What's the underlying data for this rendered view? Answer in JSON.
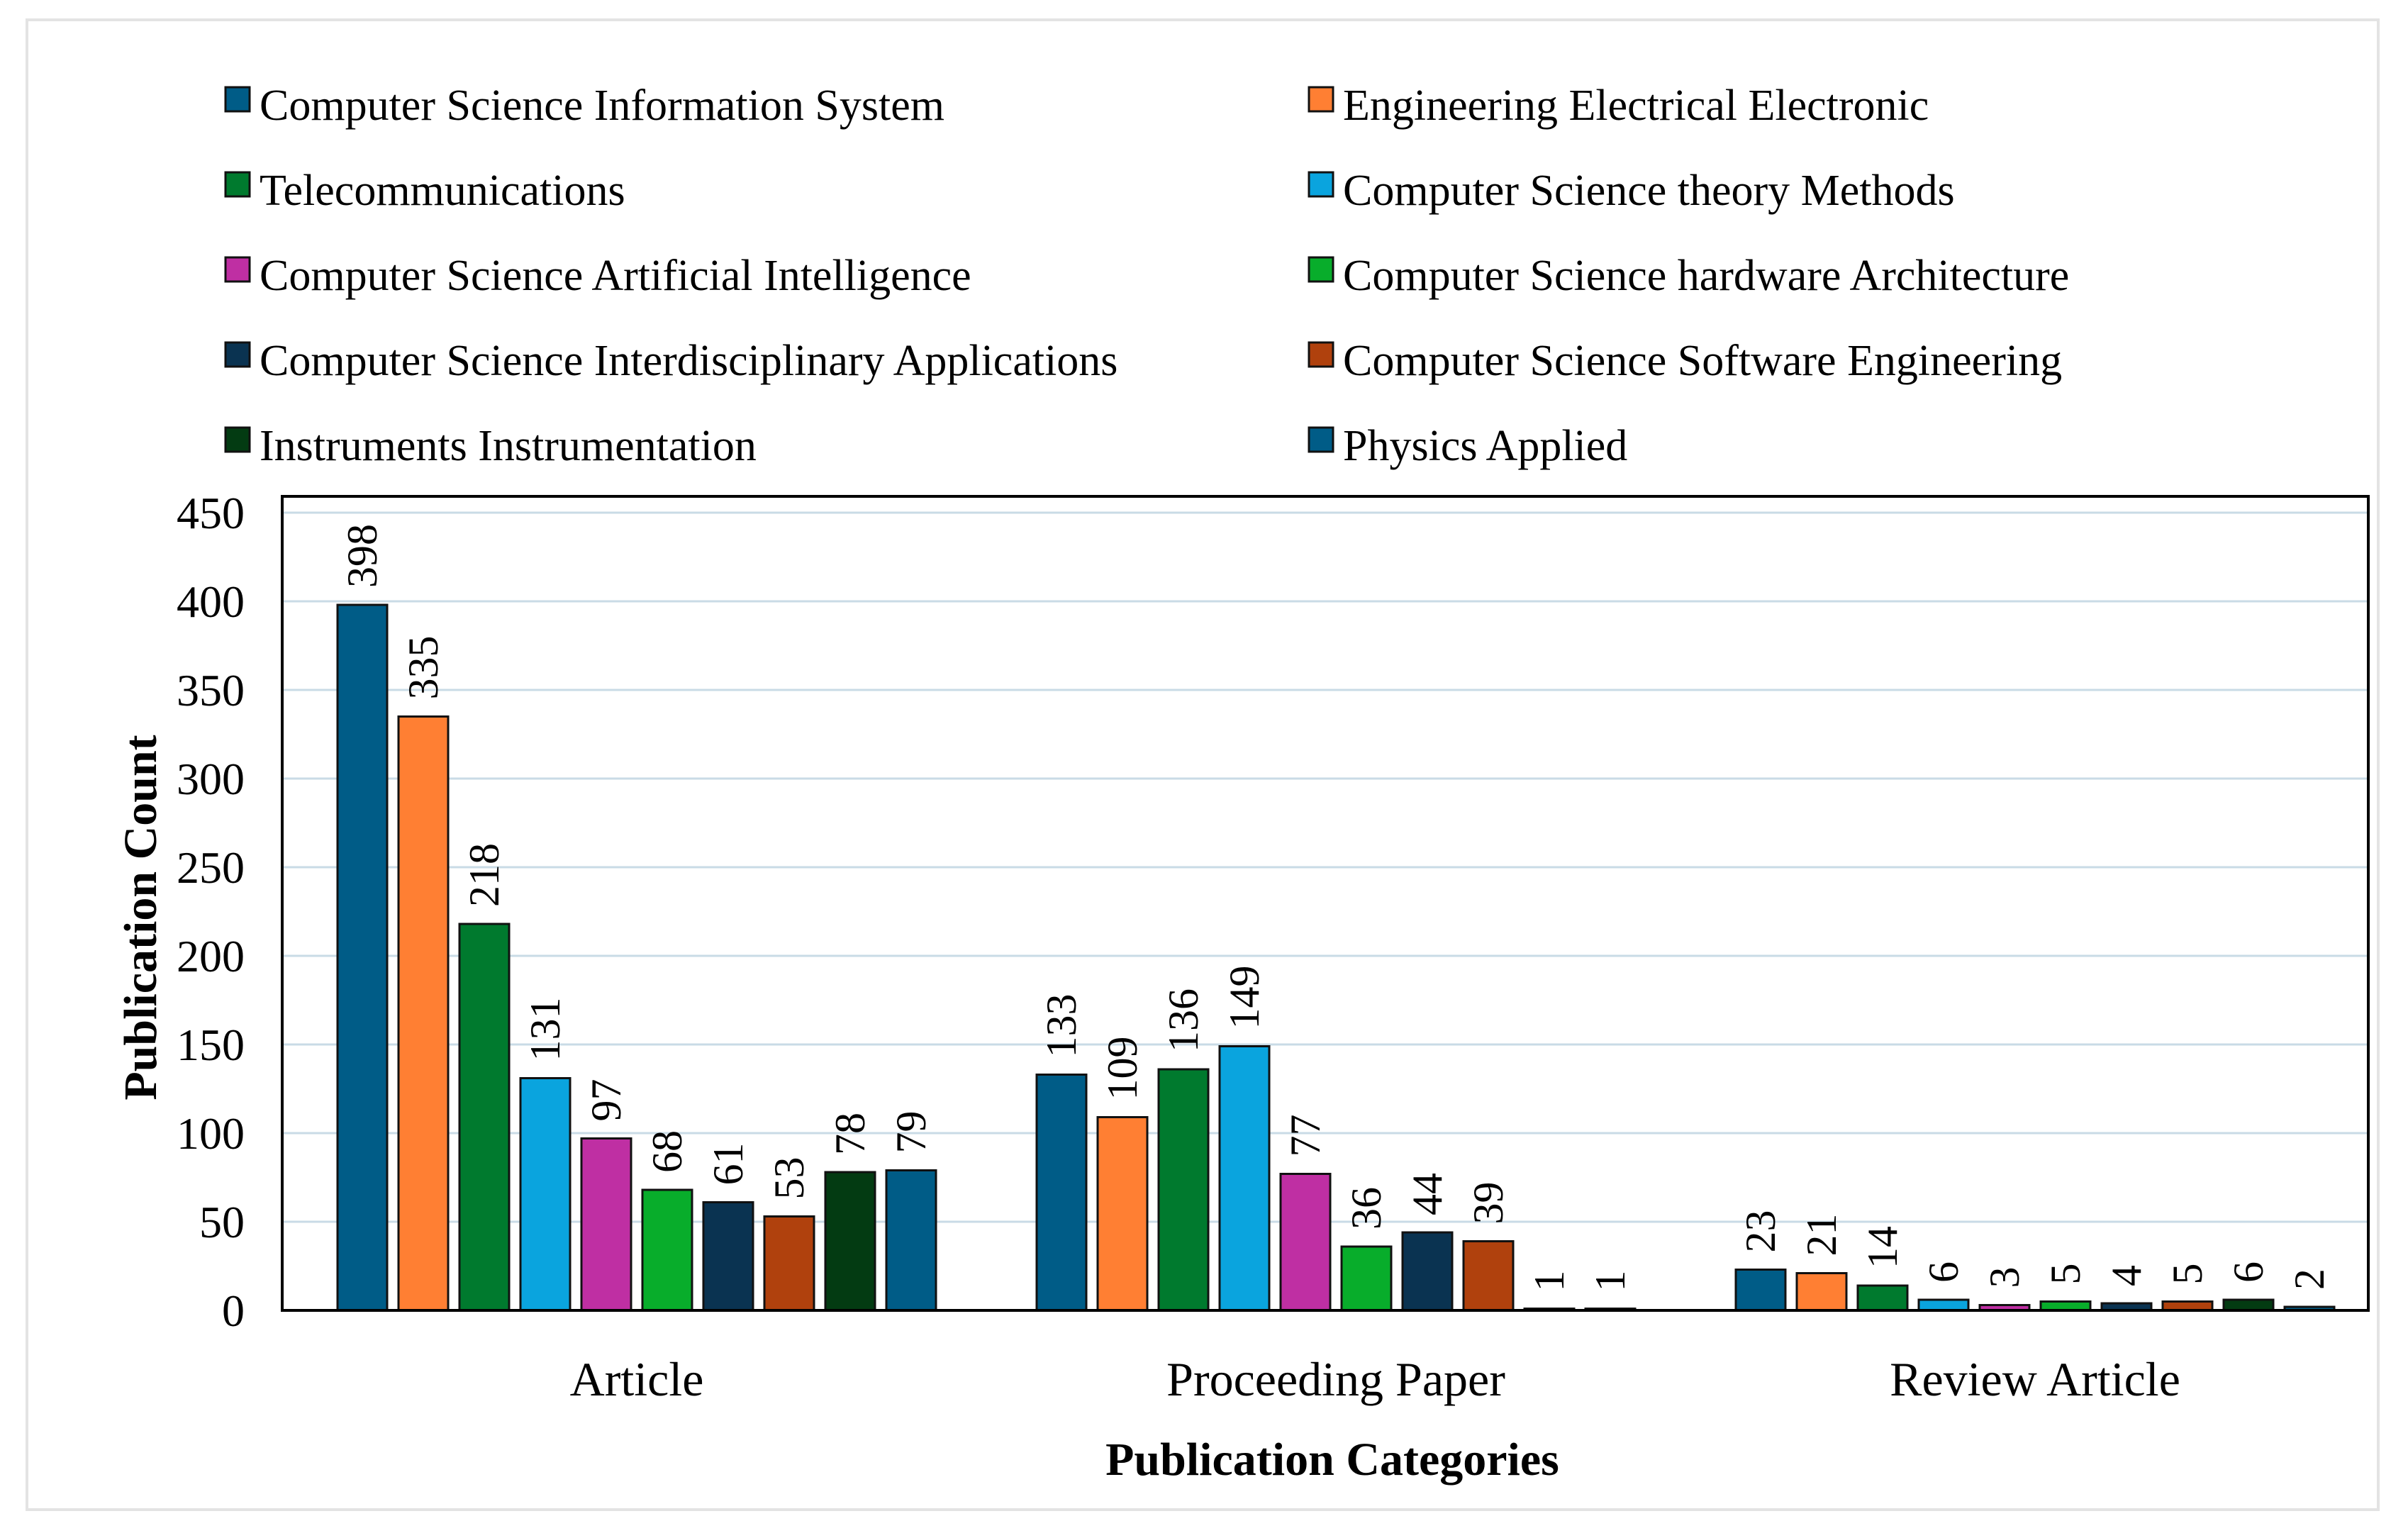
{
  "chart_data": {
    "type": "bar",
    "title": "",
    "xlabel": "Publication Categories",
    "ylabel": "Publication Count",
    "ylim": [
      0,
      450
    ],
    "yticks": [
      0,
      50,
      100,
      150,
      200,
      250,
      300,
      350,
      400,
      450
    ],
    "grid": true,
    "legend_position": "top",
    "categories": [
      "Article",
      "Proceeding Paper",
      "Review Article"
    ],
    "series": [
      {
        "name": "Computer Science Information System",
        "color": "#005c87",
        "values": [
          398,
          133,
          23
        ]
      },
      {
        "name": "Engineering Electrical Electronic",
        "color": "#ff7f33",
        "values": [
          335,
          109,
          21
        ]
      },
      {
        "name": "Telecommunications",
        "color": "#007a2e",
        "values": [
          218,
          136,
          14
        ]
      },
      {
        "name": "Computer Science theory Methods",
        "color": "#0aa4de",
        "values": [
          131,
          149,
          6
        ]
      },
      {
        "name": "Computer Science Artificial Intelligence",
        "color": "#bf2fa3",
        "values": [
          97,
          77,
          3
        ]
      },
      {
        "name": "Computer Science hardware Architecture",
        "color": "#08ad2b",
        "values": [
          68,
          36,
          5
        ]
      },
      {
        "name": "Computer Science Interdisciplinary Applications",
        "color": "#0a3351",
        "values": [
          61,
          44,
          4
        ]
      },
      {
        "name": "Computer Science Software Engineering",
        "color": "#b0410d",
        "values": [
          53,
          39,
          5
        ]
      },
      {
        "name": "Instruments Instrumentation",
        "color": "#033b12",
        "values": [
          78,
          1,
          6
        ]
      },
      {
        "name": "Physics Applied",
        "color": "#005c87",
        "values": [
          79,
          1,
          2
        ]
      }
    ]
  }
}
